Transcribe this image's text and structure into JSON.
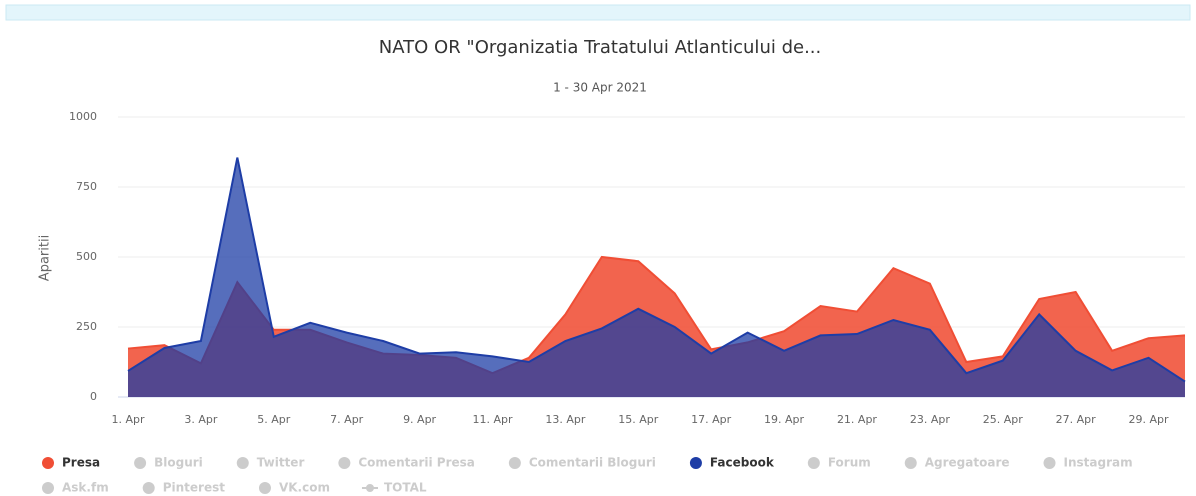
{
  "chart_data": {
    "type": "area",
    "title": "NATO OR \"Organizatia Tratatului Atlanticului de...",
    "subtitle": "1 - 30 Apr 2021",
    "y_label": "Aparitii",
    "categories": [
      "1. Apr",
      null,
      "3. Apr",
      null,
      "5. Apr",
      null,
      "7. Apr",
      null,
      "9. Apr",
      null,
      "11. Apr",
      null,
      "13. Apr",
      null,
      "15. Apr",
      null,
      "17. Apr",
      null,
      "19. Apr",
      null,
      "21. Apr",
      null,
      "23. Apr",
      null,
      "25. Apr",
      null,
      "27. Apr",
      null,
      "29. Apr",
      null
    ],
    "ylim": [
      0,
      1000
    ],
    "yticks": [
      0,
      250,
      500,
      750,
      1000
    ],
    "grid": true,
    "series": [
      {
        "name": "Presa",
        "color": "#f04e35",
        "visible": true,
        "values": [
          173,
          185,
          120,
          410,
          240,
          240,
          195,
          155,
          150,
          140,
          85,
          140,
          295,
          500,
          485,
          370,
          170,
          195,
          235,
          325,
          305,
          460,
          405,
          125,
          145,
          350,
          375,
          165,
          210,
          220
        ]
      },
      {
        "name": "Bloguri",
        "color": "#cccccc",
        "visible": false
      },
      {
        "name": "Twitter",
        "color": "#cccccc",
        "visible": false
      },
      {
        "name": "Comentarii Presa",
        "color": "#cccccc",
        "visible": false
      },
      {
        "name": "Comentarii Bloguri",
        "color": "#cccccc",
        "visible": false
      },
      {
        "name": "Facebook",
        "color": "#1e3da6",
        "visible": true,
        "values": [
          93,
          175,
          200,
          855,
          215,
          265,
          230,
          200,
          155,
          160,
          145,
          125,
          200,
          245,
          315,
          250,
          155,
          230,
          165,
          220,
          225,
          275,
          240,
          85,
          130,
          295,
          165,
          95,
          140,
          55
        ]
      },
      {
        "name": "Forum",
        "color": "#cccccc",
        "visible": false
      },
      {
        "name": "Agregatoare",
        "color": "#cccccc",
        "visible": false
      },
      {
        "name": "Instagram",
        "color": "#cccccc",
        "visible": false
      },
      {
        "name": "Ask.fm",
        "color": "#cccccc",
        "visible": false
      },
      {
        "name": "Pinterest",
        "color": "#cccccc",
        "visible": false
      },
      {
        "name": "VK.com",
        "color": "#cccccc",
        "visible": false
      },
      {
        "name": "TOTAL",
        "color": "#cccccc",
        "visible": false,
        "symbol": "line"
      }
    ]
  }
}
